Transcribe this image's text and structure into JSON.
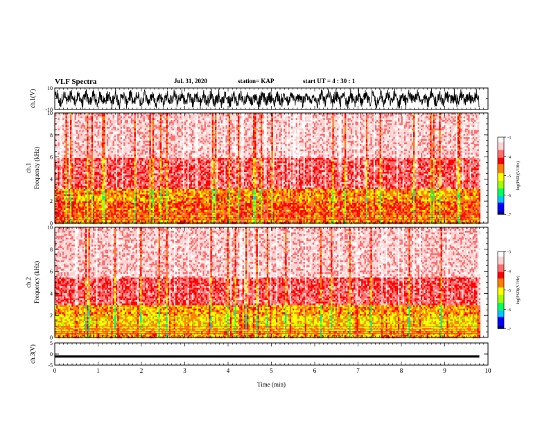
{
  "header": {
    "title": "VLF Spectra",
    "date": "Jul. 31, 2020",
    "station": "station= KAP",
    "start": "start UT =  4 : 30 : 1"
  },
  "colors": {
    "colormap": [
      "#00007a",
      "#0000ff",
      "#00c8ff",
      "#00ff64",
      "#a0ff00",
      "#ffff00",
      "#ff8000",
      "#ff0000",
      "#ff6e6e",
      "#ffd2d2",
      "#ffffff"
    ],
    "axis": "#000000"
  },
  "chart_data": [
    {
      "type": "line",
      "panel": "ch1-waveform",
      "ylabel": "ch.1(V)",
      "ylim": [
        -10,
        10
      ],
      "yticks": [
        "10",
        "-10"
      ],
      "xlim": [
        0,
        10
      ],
      "note_series": "dense oscillating black trace spanning roughly -9 to +9 V across 0-9.8 min"
    },
    {
      "type": "heatmap",
      "panel": "ch1-spectrogram",
      "channel": "ch.1",
      "ylabel": "Frequency (kHz)",
      "ylim": [
        0,
        10
      ],
      "yticks": [
        "0",
        "2",
        "4",
        "6",
        "8",
        "10"
      ],
      "xlim": [
        0,
        10
      ],
      "data_end_min": 9.8,
      "band_profile": [
        {
          "f_khz": [
            0,
            0.8
          ],
          "log_psd": -4.6
        },
        {
          "f_khz": [
            0.8,
            2.0
          ],
          "log_psd": -4.5
        },
        {
          "f_khz": [
            2.0,
            3.2
          ],
          "log_psd": -4.7
        },
        {
          "f_khz": [
            3.2,
            6.0
          ],
          "log_psd": -3.9
        },
        {
          "f_khz": [
            6.0,
            10.0
          ],
          "log_psd": -3.4
        }
      ],
      "colorbar": {
        "label": "log(PSD)(V²/Hz)",
        "range": [
          -7,
          -3
        ],
        "ticks": [
          "-3",
          "-4",
          "-5",
          "-6",
          "-7"
        ]
      }
    },
    {
      "type": "heatmap",
      "panel": "ch2-spectrogram",
      "channel": "ch.2",
      "ylabel": "Frequency (kHz)",
      "ylim": [
        0,
        10
      ],
      "yticks": [
        "0",
        "2",
        "4",
        "6",
        "8",
        "10"
      ],
      "xlim": [
        0,
        10
      ],
      "data_end_min": 9.8,
      "band_profile": [
        {
          "f_khz": [
            0,
            0.6
          ],
          "log_psd": -4.7
        },
        {
          "f_khz": [
            0.6,
            2.0
          ],
          "log_psd": -4.9
        },
        {
          "f_khz": [
            2.0,
            3.0
          ],
          "log_psd": -4.7
        },
        {
          "f_khz": [
            3.0,
            5.5
          ],
          "log_psd": -3.9
        },
        {
          "f_khz": [
            5.5,
            10.0
          ],
          "log_psd": -3.4
        }
      ],
      "colorbar": {
        "label": "log(PSD)(V²/Hz)",
        "range": [
          -7,
          -3
        ],
        "ticks": [
          "-3",
          "-4",
          "-5",
          "-6",
          "-7"
        ]
      }
    },
    {
      "type": "line",
      "panel": "ch3-waveform",
      "ylabel": "ch.3(V)",
      "ylim": [
        -5,
        5
      ],
      "yticks": [
        "5",
        "0",
        "-5"
      ],
      "xlim": [
        0,
        10
      ],
      "note_series": "thick near-constant black trace at about -1 V from 0 to 9.8 min"
    }
  ],
  "x_axis": {
    "label": "Time (min)",
    "ticks": [
      "0",
      "1",
      "2",
      "3",
      "4",
      "5",
      "6",
      "7",
      "8",
      "9",
      "10"
    ],
    "range": [
      0,
      10
    ]
  }
}
